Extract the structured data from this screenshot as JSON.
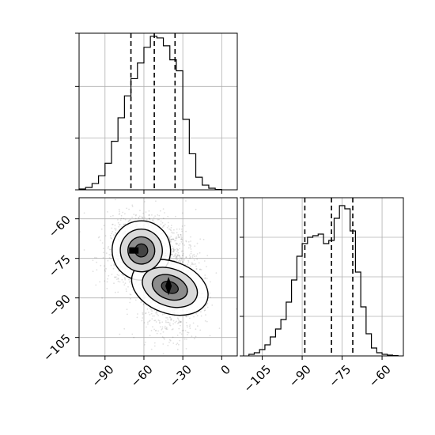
{
  "chart_data": [
    {
      "type": "histogram",
      "panel": "top-left",
      "variable": "x",
      "xlim": [
        -110,
        12
      ],
      "ylim": [
        0,
        1.0
      ],
      "x_ticks": [
        -90,
        -60,
        -30,
        0
      ],
      "y_ticks_labeled": false,
      "grid": true,
      "bin_edges": [
        -110,
        -105,
        -100,
        -95,
        -90,
        -85,
        -80,
        -75,
        -70,
        -65,
        -60,
        -55,
        -50,
        -45,
        -40,
        -35,
        -30,
        -25,
        -20,
        -15,
        -10,
        -5,
        0
      ],
      "counts": [
        0.005,
        0.015,
        0.04,
        0.09,
        0.17,
        0.31,
        0.46,
        0.6,
        0.71,
        0.81,
        0.91,
        0.98,
        0.97,
        0.92,
        0.83,
        0.76,
        0.45,
        0.23,
        0.08,
        0.03,
        0.01,
        0.002
      ],
      "quantile_lines": [
        -70,
        -52,
        -36
      ]
    },
    {
      "type": "scatter_density",
      "panel": "bottom-left",
      "xlabel_var": "x",
      "ylabel_var": "y",
      "xlim": [
        -110,
        12
      ],
      "ylim": [
        -112,
        -52
      ],
      "x_ticks": [
        -90,
        -60,
        -30,
        0
      ],
      "y_ticks": [
        -60,
        -75,
        -90,
        -105
      ],
      "grid": true,
      "modes": [
        {
          "x": -62,
          "y": -72,
          "sx": 9,
          "sy": 4.5
        },
        {
          "x": -40,
          "y": -86,
          "sx": 8,
          "sy": 6
        }
      ],
      "contour_levels": [
        "outer",
        "middle",
        "inner",
        "core"
      ]
    },
    {
      "type": "histogram",
      "panel": "bottom-right",
      "variable": "y",
      "xlim": [
        -112,
        -52
      ],
      "ylim": [
        0,
        1.0
      ],
      "x_ticks": [
        -105,
        -90,
        -75,
        -60
      ],
      "y_ticks_labeled": false,
      "grid": true,
      "bin_edges": [
        -110,
        -108,
        -106,
        -104,
        -102,
        -100,
        -98,
        -96,
        -94,
        -92,
        -90,
        -88,
        -86,
        -84,
        -82,
        -80,
        -78,
        -76,
        -74,
        -72,
        -70,
        -68,
        -66,
        -64,
        -62,
        -60,
        -58,
        -56,
        -54
      ],
      "counts": [
        0.01,
        0.02,
        0.04,
        0.07,
        0.12,
        0.17,
        0.23,
        0.34,
        0.48,
        0.63,
        0.71,
        0.75,
        0.76,
        0.77,
        0.71,
        0.73,
        0.87,
        0.95,
        0.93,
        0.79,
        0.53,
        0.31,
        0.14,
        0.05,
        0.02,
        0.01,
        0.005,
        0.002
      ],
      "quantile_lines": [
        -89,
        -79,
        -71
      ]
    }
  ]
}
